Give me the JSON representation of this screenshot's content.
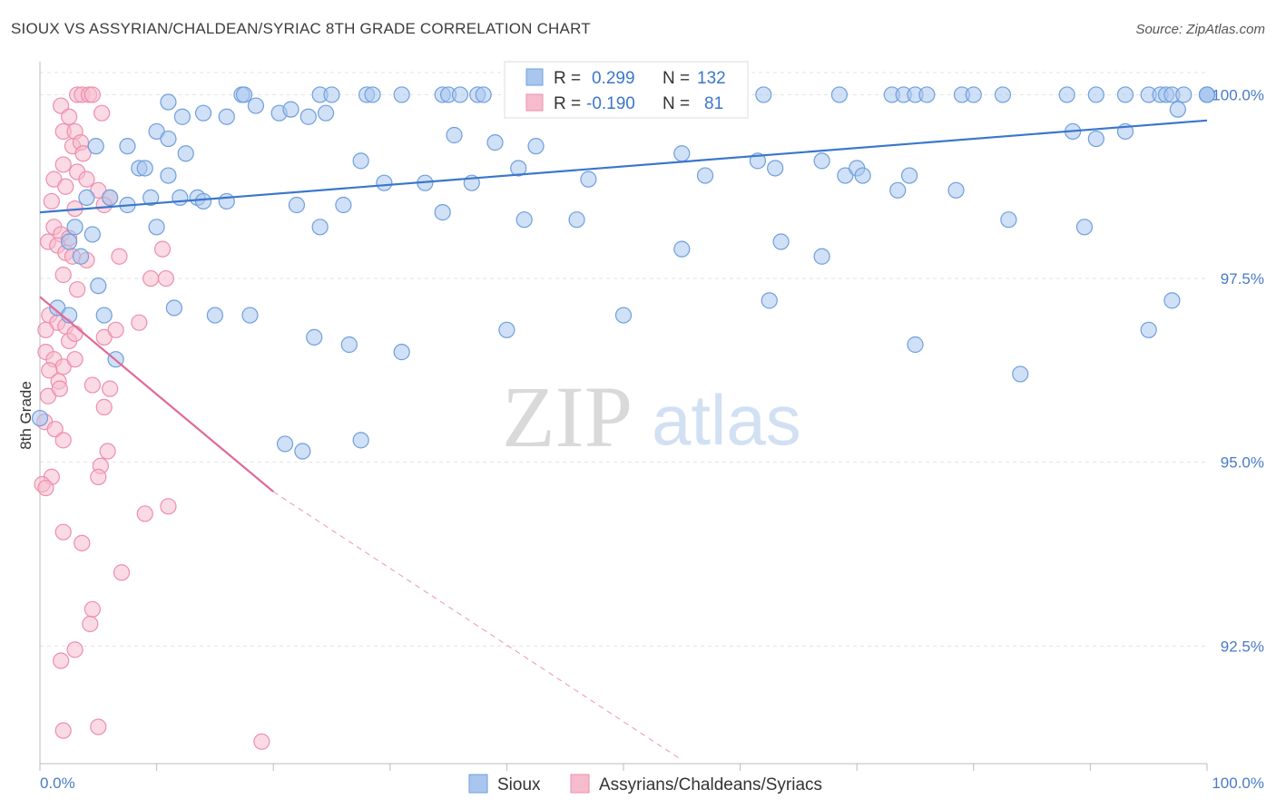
{
  "title": "SIOUX VS ASSYRIAN/CHALDEAN/SYRIAC 8TH GRADE CORRELATION CHART",
  "source": "Source: ZipAtlas.com",
  "watermark": {
    "zip": "ZIP",
    "atlas": "atlas"
  },
  "colors": {
    "blue_fill": "#a9c6ee",
    "blue_stroke": "#6f9fdc",
    "blue_line": "#3a77cc",
    "pink_fill": "#f6bccd",
    "pink_stroke": "#ee8eab",
    "pink_line": "#e0699a",
    "tick_text": "#4a7ac8",
    "grid": "#e3e3e3"
  },
  "chart_data": {
    "type": "scatter",
    "title": "SIOUX VS ASSYRIAN/CHALDEAN/SYRIAC 8TH GRADE CORRELATION CHART",
    "xlabel": "",
    "ylabel": "8th Grade",
    "xlim": [
      0,
      100
    ],
    "ylim": [
      90.9,
      100.4
    ],
    "y_ticks": [
      92.5,
      95.0,
      97.5,
      100.0
    ],
    "y_tick_labels": [
      "92.5%",
      "95.0%",
      "97.5%",
      "100.0%"
    ],
    "x_tick_labels": [
      "0.0%",
      "100.0%"
    ],
    "grid": true,
    "legend_position": "top-center",
    "legend": [
      {
        "r_label": "R =",
        "r_value": "0.299",
        "n_label": "N =",
        "n_value": "132"
      },
      {
        "r_label": "R =",
        "r_value": "-0.190",
        "n_label": "N =",
        "n_value": "81"
      }
    ],
    "series": [
      {
        "name": "Sioux",
        "color": "#a9c6ee",
        "trend": {
          "x0": 0,
          "y0": 98.4,
          "x1": 100,
          "y1": 99.65
        },
        "points": [
          [
            17.3,
            100
          ],
          [
            17.5,
            100
          ],
          [
            24.0,
            100
          ],
          [
            25.0,
            100
          ],
          [
            28.0,
            100
          ],
          [
            28.5,
            100
          ],
          [
            31.0,
            100
          ],
          [
            34.5,
            100
          ],
          [
            35.0,
            100
          ],
          [
            36.0,
            100
          ],
          [
            37.5,
            100
          ],
          [
            38.0,
            100
          ],
          [
            42.0,
            100
          ],
          [
            44.5,
            100
          ],
          [
            46.0,
            100
          ],
          [
            48.0,
            100
          ],
          [
            49.0,
            100
          ],
          [
            51.0,
            100
          ],
          [
            54.0,
            100
          ],
          [
            58.5,
            100
          ],
          [
            62.0,
            100
          ],
          [
            68.5,
            100
          ],
          [
            73.0,
            100
          ],
          [
            74.0,
            100
          ],
          [
            75.0,
            100
          ],
          [
            76.0,
            100
          ],
          [
            79.0,
            100
          ],
          [
            80.0,
            100
          ],
          [
            82.5,
            100
          ],
          [
            88.0,
            100
          ],
          [
            90.5,
            100
          ],
          [
            93.0,
            100
          ],
          [
            95.0,
            100
          ],
          [
            96.0,
            100
          ],
          [
            96.5,
            100
          ],
          [
            97.0,
            100
          ],
          [
            98.0,
            100
          ],
          [
            100.5,
            100
          ],
          [
            101.5,
            100
          ],
          [
            102.5,
            100
          ],
          [
            103.0,
            100
          ],
          [
            11.0,
            99.9
          ],
          [
            18.5,
            99.85
          ],
          [
            20.5,
            99.75
          ],
          [
            21.5,
            99.8
          ],
          [
            23.0,
            99.7
          ],
          [
            24.5,
            99.75
          ],
          [
            12.2,
            99.7
          ],
          [
            14.0,
            99.75
          ],
          [
            16.0,
            99.7
          ],
          [
            10.0,
            99.5
          ],
          [
            11.0,
            99.4
          ],
          [
            35.5,
            99.45
          ],
          [
            39.0,
            99.35
          ],
          [
            42.5,
            99.3
          ],
          [
            88.5,
            99.5
          ],
          [
            90.5,
            99.4
          ],
          [
            93.0,
            99.5
          ],
          [
            97.5,
            99.8
          ],
          [
            4.8,
            99.3
          ],
          [
            7.5,
            99.3
          ],
          [
            12.5,
            99.2
          ],
          [
            8.5,
            99.0
          ],
          [
            9.0,
            99.0
          ],
          [
            11.0,
            98.9
          ],
          [
            27.5,
            99.1
          ],
          [
            41.0,
            99.0
          ],
          [
            55.0,
            99.2
          ],
          [
            61.5,
            99.1
          ],
          [
            67.0,
            99.1
          ],
          [
            69.0,
            98.9
          ],
          [
            70.0,
            99.0
          ],
          [
            73.5,
            98.7
          ],
          [
            4.0,
            98.6
          ],
          [
            6.0,
            98.6
          ],
          [
            7.5,
            98.5
          ],
          [
            9.5,
            98.6
          ],
          [
            12.0,
            98.6
          ],
          [
            13.5,
            98.6
          ],
          [
            14.0,
            98.55
          ],
          [
            16.0,
            98.55
          ],
          [
            22.0,
            98.5
          ],
          [
            26.0,
            98.5
          ],
          [
            29.5,
            98.8
          ],
          [
            33.0,
            98.8
          ],
          [
            37.0,
            98.8
          ],
          [
            47.0,
            98.85
          ],
          [
            57.0,
            98.9
          ],
          [
            63.0,
            99.0
          ],
          [
            70.5,
            98.9
          ],
          [
            74.5,
            98.9
          ],
          [
            78.5,
            98.7
          ],
          [
            83.0,
            98.3
          ],
          [
            89.5,
            98.2
          ],
          [
            3.0,
            98.2
          ],
          [
            4.5,
            98.1
          ],
          [
            10.0,
            98.2
          ],
          [
            24.0,
            98.2
          ],
          [
            34.5,
            98.4
          ],
          [
            41.5,
            98.3
          ],
          [
            46.0,
            98.3
          ],
          [
            55.0,
            97.9
          ],
          [
            63.5,
            98.0
          ],
          [
            67.0,
            97.8
          ],
          [
            2.5,
            98.0
          ],
          [
            3.5,
            97.8
          ],
          [
            5.0,
            97.4
          ],
          [
            1.5,
            97.1
          ],
          [
            2.5,
            97.0
          ],
          [
            5.5,
            97.0
          ],
          [
            11.5,
            97.1
          ],
          [
            15.0,
            97.0
          ],
          [
            18.0,
            97.0
          ],
          [
            23.5,
            96.7
          ],
          [
            26.5,
            96.6
          ],
          [
            31.0,
            96.5
          ],
          [
            40.0,
            96.8
          ],
          [
            50.0,
            97.0
          ],
          [
            62.5,
            97.2
          ],
          [
            75.0,
            96.6
          ],
          [
            84.0,
            96.2
          ],
          [
            97.0,
            97.2
          ],
          [
            95.0,
            96.8
          ],
          [
            6.5,
            96.4
          ],
          [
            0.0,
            95.6
          ],
          [
            21.0,
            95.25
          ],
          [
            27.5,
            95.3
          ],
          [
            22.5,
            95.15
          ]
        ]
      },
      {
        "name": "Assyrians/Chaldeans/Syriacs",
        "color": "#f6bccd",
        "trend": {
          "x0": 0,
          "y0": 97.25,
          "x1": 20,
          "y1": 94.6
        },
        "trend_extension": {
          "x0": 20,
          "y0": 94.6,
          "x1": 55,
          "y1": 90.95
        },
        "points": [
          [
            3.2,
            100
          ],
          [
            3.6,
            100
          ],
          [
            4.2,
            100
          ],
          [
            4.5,
            100
          ],
          [
            1.8,
            99.85
          ],
          [
            2.5,
            99.7
          ],
          [
            5.3,
            99.75
          ],
          [
            2.0,
            99.5
          ],
          [
            3.0,
            99.5
          ],
          [
            2.8,
            99.3
          ],
          [
            3.5,
            99.35
          ],
          [
            3.7,
            99.2
          ],
          [
            2.0,
            99.05
          ],
          [
            3.2,
            98.95
          ],
          [
            1.2,
            98.85
          ],
          [
            2.2,
            98.75
          ],
          [
            4.0,
            98.85
          ],
          [
            5.0,
            98.7
          ],
          [
            6.0,
            98.6
          ],
          [
            1.0,
            98.55
          ],
          [
            3.0,
            98.45
          ],
          [
            5.5,
            98.5
          ],
          [
            1.2,
            98.2
          ],
          [
            1.8,
            98.1
          ],
          [
            2.5,
            98.05
          ],
          [
            0.7,
            98.0
          ],
          [
            1.5,
            97.95
          ],
          [
            2.2,
            97.85
          ],
          [
            2.8,
            97.8
          ],
          [
            4.0,
            97.75
          ],
          [
            6.8,
            97.8
          ],
          [
            10.5,
            97.9
          ],
          [
            9.5,
            97.5
          ],
          [
            10.8,
            97.5
          ],
          [
            2.0,
            97.55
          ],
          [
            3.2,
            97.35
          ],
          [
            0.8,
            97.0
          ],
          [
            1.5,
            96.9
          ],
          [
            2.2,
            96.85
          ],
          [
            0.5,
            96.8
          ],
          [
            2.5,
            96.65
          ],
          [
            3.0,
            96.75
          ],
          [
            5.5,
            96.7
          ],
          [
            6.5,
            96.8
          ],
          [
            8.5,
            96.9
          ],
          [
            0.5,
            96.5
          ],
          [
            1.2,
            96.4
          ],
          [
            2.0,
            96.3
          ],
          [
            3.0,
            96.4
          ],
          [
            0.8,
            96.25
          ],
          [
            1.6,
            96.1
          ],
          [
            4.5,
            96.05
          ],
          [
            6.0,
            96.0
          ],
          [
            0.7,
            95.9
          ],
          [
            1.7,
            96.0
          ],
          [
            5.5,
            95.75
          ],
          [
            0.4,
            95.55
          ],
          [
            1.3,
            95.45
          ],
          [
            2.0,
            95.3
          ],
          [
            5.8,
            95.15
          ],
          [
            5.2,
            94.95
          ],
          [
            5.0,
            94.8
          ],
          [
            1.0,
            94.8
          ],
          [
            0.2,
            94.7
          ],
          [
            0.5,
            94.65
          ],
          [
            11.0,
            94.4
          ],
          [
            9.0,
            94.3
          ],
          [
            2.0,
            94.05
          ],
          [
            3.6,
            93.9
          ],
          [
            7.0,
            93.5
          ],
          [
            4.5,
            93.0
          ],
          [
            4.3,
            92.8
          ],
          [
            3.0,
            92.45
          ],
          [
            1.8,
            92.3
          ],
          [
            2.0,
            91.35
          ],
          [
            5.0,
            91.4
          ],
          [
            19.0,
            91.2
          ]
        ]
      }
    ]
  },
  "bottom_legend": [
    {
      "label": "Sioux"
    },
    {
      "label": "Assyrians/Chaldeans/Syriacs"
    }
  ]
}
